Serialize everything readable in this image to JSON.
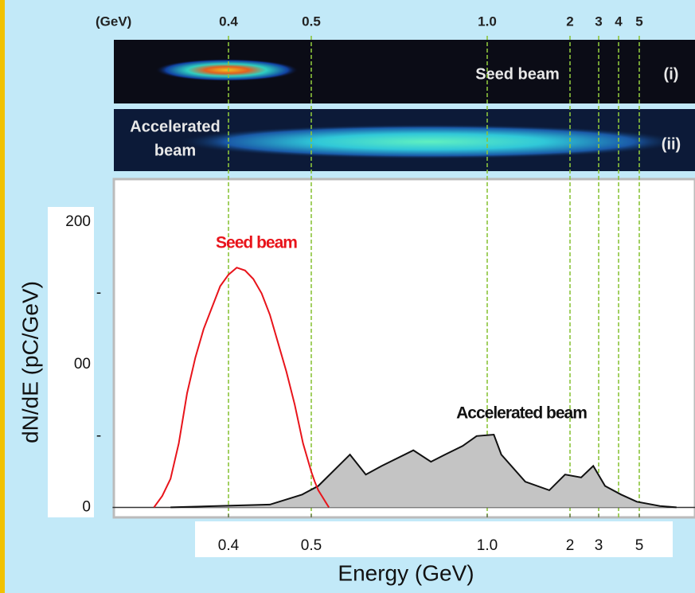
{
  "chart_data": {
    "type": "area",
    "top_axis_label": "(GeV)",
    "top_xticks": [
      0.4,
      0.5,
      {
        "value": 1,
        "label": "1.0"
      },
      2,
      3,
      4,
      5
    ],
    "xticks": [
      0.4,
      0.5,
      {
        "value": 1,
        "label": "1.0"
      },
      2,
      3,
      5
    ],
    "xlim": [
      0.26,
      7.7
    ],
    "xlabel": "Energy (GeV)",
    "ylabel": "dN/dE (pC/GeV)",
    "ylim": [
      -7,
      230
    ],
    "yticks": [
      0,
      {
        "value": 50,
        "label": "-"
      },
      {
        "value": 100,
        "label": "00"
      },
      {
        "value": 150,
        "label": "-"
      },
      200
    ],
    "panels": [
      {
        "lines": [
          "Seed beam"
        ],
        "index": "(i)"
      },
      {
        "lines": [
          "Accelerated",
          "beam"
        ],
        "index": "(ii)"
      }
    ],
    "series": [
      {
        "name": "Seed beam",
        "color": "#e8141b",
        "x": [
          0.31,
          0.32,
          0.33,
          0.34,
          0.35,
          0.36,
          0.37,
          0.38,
          0.39,
          0.4,
          0.41,
          0.42,
          0.43,
          0.44,
          0.45,
          0.46,
          0.47,
          0.48,
          0.49,
          0.5,
          0.51,
          0.52,
          0.53,
          0.54,
          0.55
        ],
        "values": [
          0,
          8,
          20,
          45,
          80,
          105,
          125,
          140,
          155,
          163,
          168,
          166,
          160,
          150,
          135,
          115,
          95,
          72,
          45,
          25,
          18,
          12,
          8,
          4,
          0
        ]
      },
      {
        "name": "Accelerated beam",
        "color": "#111111",
        "fill": "#c4c4c4",
        "x": [
          0.33,
          0.45,
          0.489,
          0.52,
          0.61,
          0.655,
          0.7,
          0.79,
          0.84,
          0.88,
          0.93,
          0.97,
          1.08,
          1.17,
          1.46,
          1.75,
          1.94,
          2.39,
          2.81,
          3.32,
          4.12,
          4.88,
          6.0,
          6.8
        ],
        "values": [
          0,
          2,
          9,
          15,
          37,
          23,
          29,
          40,
          32,
          37,
          43,
          50,
          51,
          37,
          18,
          12,
          23,
          21,
          29,
          15,
          9,
          4,
          1,
          0
        ]
      }
    ]
  }
}
